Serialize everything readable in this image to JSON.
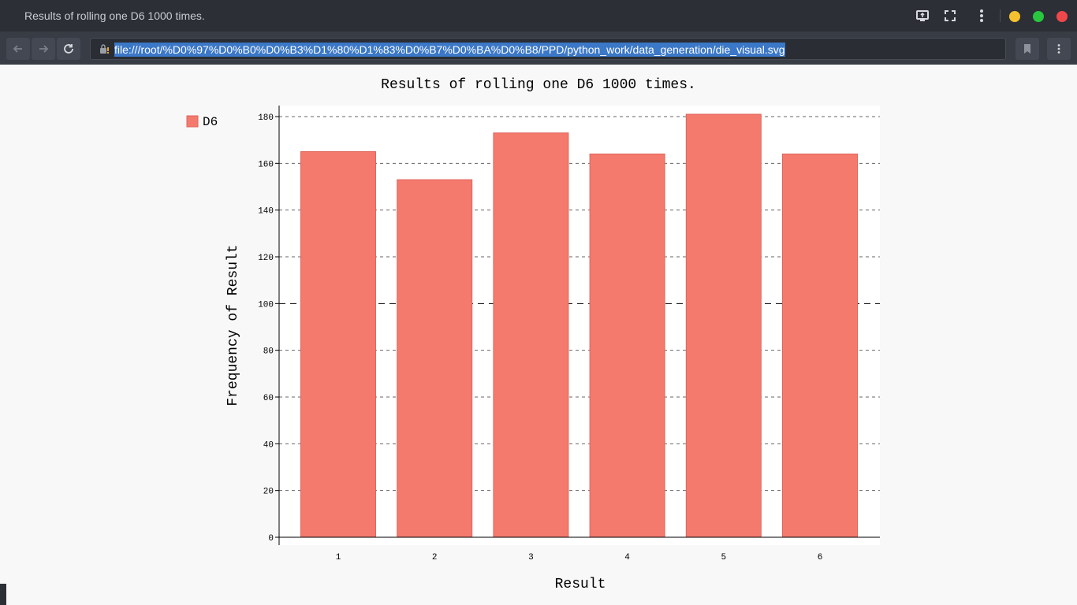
{
  "window": {
    "title": "Results of rolling one D6 1000 times."
  },
  "titlebar_icons": [
    "cast-icon",
    "fullscreen-icon",
    "more-vertical-icon"
  ],
  "window_controls": {
    "minimize_color": "#f5c02e",
    "maximize_color": "#29c63f",
    "close_color": "#f0474b"
  },
  "toolbar": {
    "url": "file:///root/%D0%97%D0%B0%D0%B3%D1%80%D1%83%D0%B7%D0%BA%D0%B8/PPD/python_work/data_generation/die_visual.svg"
  },
  "chart_data": {
    "type": "bar",
    "title": "Results of rolling one D6 1000 times.",
    "xlabel": "Result",
    "ylabel": "Frequency of Result",
    "categories": [
      "1",
      "2",
      "3",
      "4",
      "5",
      "6"
    ],
    "series": [
      {
        "name": "D6",
        "values": [
          165,
          153,
          173,
          164,
          181,
          164
        ],
        "color": "#f47a6e"
      }
    ],
    "ylim": [
      0,
      180
    ],
    "yticks": [
      0,
      20,
      40,
      60,
      80,
      100,
      120,
      140,
      160,
      180
    ],
    "grid": true,
    "legend": "top-left"
  }
}
